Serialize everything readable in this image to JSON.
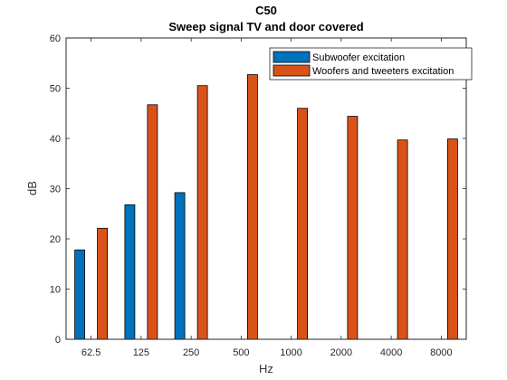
{
  "chart_data": {
    "type": "bar",
    "title": "C50",
    "subtitle": "Sweep signal TV and door  covered",
    "xlabel": "Hz",
    "ylabel": "dB",
    "categories": [
      "62.5",
      "125",
      "250",
      "500",
      "1000",
      "2000",
      "4000",
      "8000"
    ],
    "yticks": [
      "0",
      "10",
      "20",
      "30",
      "40",
      "50",
      "60"
    ],
    "ylim": [
      0,
      60
    ],
    "grid": false,
    "legend_position": "top-right",
    "series": [
      {
        "name": "Subwoofer excitation",
        "color": "#0072BD",
        "values": [
          17.8,
          26.8,
          29.2,
          null,
          null,
          null,
          null,
          null
        ]
      },
      {
        "name": "Woofers and tweeters excitation",
        "color": "#D95319",
        "values": [
          22.1,
          46.7,
          50.5,
          52.7,
          46.0,
          44.4,
          39.7,
          39.9
        ]
      }
    ]
  }
}
